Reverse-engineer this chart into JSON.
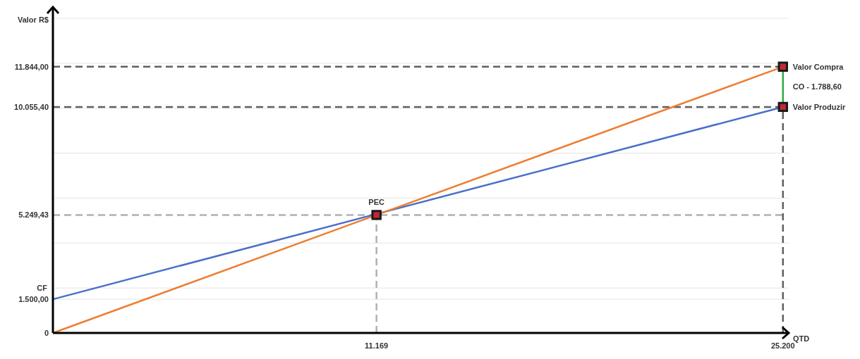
{
  "chart_data": {
    "type": "line",
    "xlabel": "QTD",
    "ylabel": "Valor R$",
    "xlim": [
      0,
      25400
    ],
    "ylim": [
      0,
      14500
    ],
    "xticks": [
      {
        "value": 11169,
        "label": "11.169"
      },
      {
        "value": 25200,
        "label": "25.200"
      }
    ],
    "yticks": [
      {
        "value": 0,
        "label": "0"
      },
      {
        "value": 1500,
        "label": "1.500,00"
      },
      {
        "value": 2000,
        "label": null
      },
      {
        "value": 4000,
        "label": null
      },
      {
        "value": 6000,
        "label": null
      },
      {
        "value": 8000,
        "label": null
      },
      {
        "value": 10000,
        "label": null
      },
      {
        "value": 12000,
        "label": null
      },
      {
        "value": 14000,
        "label": null
      }
    ],
    "grid": "y",
    "series": [
      {
        "color": "#4a6fc9",
        "x": [
          0,
          25200
        ],
        "values": [
          1500,
          10055.4
        ],
        "marker": "none",
        "line_style": "solid"
      },
      {
        "color": "#ed7d31",
        "x": [
          0,
          25200
        ],
        "values": [
          0,
          11844
        ],
        "marker": "none",
        "line_style": "solid"
      },
      {
        "type": "scatter",
        "color": "#1a1a1a",
        "x": [
          11169,
          25200,
          25200
        ],
        "values": [
          5249.43,
          11844,
          10055.4
        ],
        "marker": "square"
      }
    ],
    "ref_lines": [
      {
        "axis": "y",
        "value": 11844,
        "label": "11.844,00",
        "color": "#606060",
        "line_style": "dashed"
      },
      {
        "axis": "y",
        "value": 10055.4,
        "label": "10.055,40",
        "color": "#606060",
        "line_style": "dashed"
      },
      {
        "axis": "y",
        "value": 5249.43,
        "label": "5.249,43",
        "color": "#b0b0b0",
        "line_style": "dashed"
      },
      {
        "axis": "x",
        "value": 11169,
        "color": "#b0b0b0",
        "line_style": "dashed"
      },
      {
        "axis": "x",
        "value": 25200,
        "color": "#606060",
        "line_style": "dashed"
      }
    ],
    "annotations": [
      {
        "text": "CF",
        "x": 0,
        "y": 1500
      },
      {
        "text": "PEC",
        "x": 11169,
        "y": 5249.43
      },
      {
        "text": "Valor Compra",
        "x": 25200,
        "y": 11844
      },
      "CO - 1.788,60",
      {
        "text": "Valor Produzir",
        "x": 25200,
        "y": 10055.4
      }
    ]
  }
}
